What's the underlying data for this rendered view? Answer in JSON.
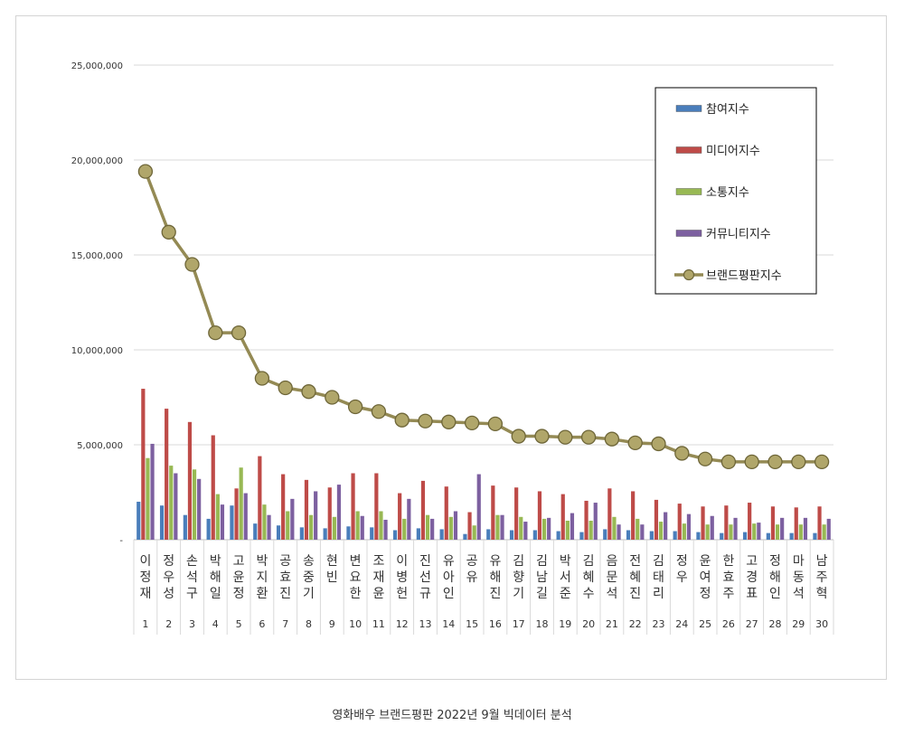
{
  "caption": "영화배우 브랜드평판  2022년 9월 빅데이터 분석",
  "chart_data": {
    "type": "bar",
    "title": "",
    "xlabel": "",
    "ylabel": "",
    "ylim": [
      0,
      25000000
    ],
    "yticks": [
      0,
      5000000,
      10000000,
      15000000,
      20000000,
      25000000
    ],
    "ytick_labels": [
      "-",
      "5,000,000",
      "10,000,000",
      "15,000,000",
      "20,000,000",
      "25,000,000"
    ],
    "grid": true,
    "legend_position": "top-right",
    "categories": [
      "이정재",
      "정우성",
      "손석구",
      "박해일",
      "고윤정",
      "박지환",
      "공효진",
      "송중기",
      "현빈",
      "변요한",
      "조재윤",
      "이병헌",
      "진선규",
      "유아인",
      "공유",
      "유해진",
      "김향기",
      "김남길",
      "박서준",
      "김혜수",
      "음문석",
      "전혜진",
      "김태리",
      "정우",
      "윤여정",
      "한효주",
      "고경표",
      "정해인",
      "마동석",
      "남주혁"
    ],
    "ranks": [
      "1",
      "2",
      "3",
      "4",
      "5",
      "6",
      "7",
      "8",
      "9",
      "10",
      "11",
      "12",
      "13",
      "14",
      "15",
      "16",
      "17",
      "18",
      "19",
      "20",
      "21",
      "22",
      "23",
      "24",
      "25",
      "26",
      "27",
      "28",
      "29",
      "30"
    ],
    "series": [
      {
        "name": "참여지수",
        "kind": "bar",
        "color": "#4a7ebb",
        "values": [
          2000000,
          1800000,
          1300000,
          1100000,
          1800000,
          850000,
          750000,
          650000,
          600000,
          700000,
          650000,
          500000,
          600000,
          550000,
          300000,
          550000,
          500000,
          500000,
          450000,
          400000,
          550000,
          500000,
          450000,
          450000,
          400000,
          350000,
          400000,
          350000,
          350000,
          350000
        ]
      },
      {
        "name": "미디어지수",
        "kind": "bar",
        "color": "#be4b48",
        "values": [
          7950000,
          6900000,
          6200000,
          5500000,
          2700000,
          4400000,
          3450000,
          3150000,
          2750000,
          3500000,
          3500000,
          2450000,
          3100000,
          2800000,
          1450000,
          2850000,
          2750000,
          2550000,
          2400000,
          2050000,
          2700000,
          2550000,
          2100000,
          1900000,
          1750000,
          1800000,
          1950000,
          1750000,
          1700000,
          1750000
        ]
      },
      {
        "name": "소통지수",
        "kind": "bar",
        "color": "#98b954",
        "values": [
          4300000,
          3900000,
          3700000,
          2400000,
          3800000,
          1850000,
          1500000,
          1300000,
          1200000,
          1500000,
          1500000,
          1100000,
          1300000,
          1200000,
          750000,
          1300000,
          1200000,
          1100000,
          1000000,
          1000000,
          1200000,
          1100000,
          950000,
          850000,
          800000,
          800000,
          850000,
          800000,
          800000,
          800000
        ]
      },
      {
        "name": "커뮤니티지수",
        "kind": "bar",
        "color": "#7d60a0",
        "values": [
          5050000,
          3500000,
          3200000,
          1850000,
          2450000,
          1300000,
          2150000,
          2550000,
          2900000,
          1250000,
          1050000,
          2150000,
          1100000,
          1500000,
          3450000,
          1300000,
          950000,
          1150000,
          1400000,
          1950000,
          800000,
          800000,
          1450000,
          1350000,
          1250000,
          1150000,
          900000,
          1150000,
          1150000,
          1100000
        ]
      },
      {
        "name": "브랜드평판지수",
        "kind": "line",
        "color": "#948a54",
        "values": [
          19400000,
          16200000,
          14500000,
          10900000,
          10900000,
          8500000,
          8000000,
          7800000,
          7500000,
          7000000,
          6750000,
          6300000,
          6250000,
          6200000,
          6150000,
          6100000,
          5450000,
          5450000,
          5400000,
          5400000,
          5300000,
          5100000,
          5050000,
          4550000,
          4250000,
          4100000,
          4100000,
          4100000,
          4100000,
          4100000
        ]
      }
    ]
  }
}
